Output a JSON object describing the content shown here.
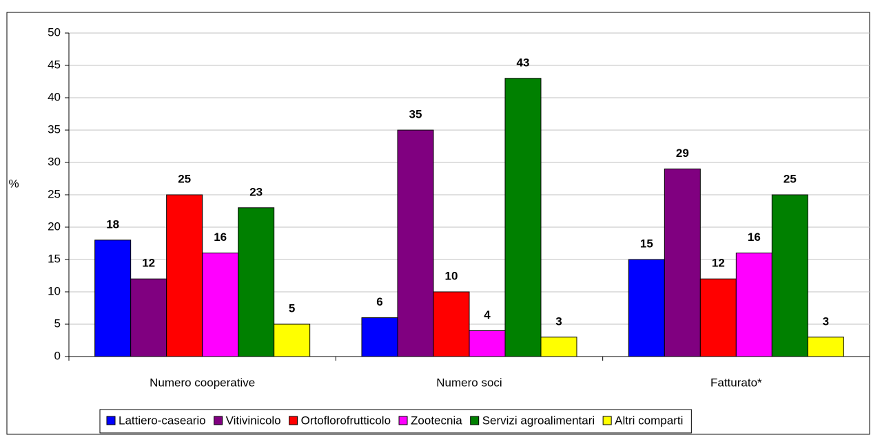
{
  "chart_data": {
    "type": "bar",
    "y_label": "%",
    "categories": [
      "Numero cooperative",
      "Numero soci",
      "Fatturato*"
    ],
    "series": [
      {
        "name": "Lattiero-caseario",
        "color": "#0000ff",
        "values": [
          18,
          6,
          15
        ]
      },
      {
        "name": "Vitivinicolo",
        "color": "#800080",
        "values": [
          12,
          35,
          29
        ]
      },
      {
        "name": "Ortoflorofrutticolo",
        "color": "#ff0000",
        "values": [
          25,
          10,
          12
        ]
      },
      {
        "name": "Zootecnia",
        "color": "#ff00ff",
        "values": [
          16,
          4,
          16
        ]
      },
      {
        "name": "Servizi agroalimentari",
        "color": "#008000",
        "values": [
          23,
          43,
          25
        ]
      },
      {
        "name": "Altri comparti",
        "color": "#ffff00",
        "values": [
          5,
          3,
          3
        ]
      }
    ],
    "ylim": [
      0,
      50
    ],
    "yticks": [
      0,
      5,
      10,
      15,
      20,
      25,
      30,
      35,
      40,
      45,
      50
    ],
    "grid": true,
    "legend": "bottom"
  }
}
